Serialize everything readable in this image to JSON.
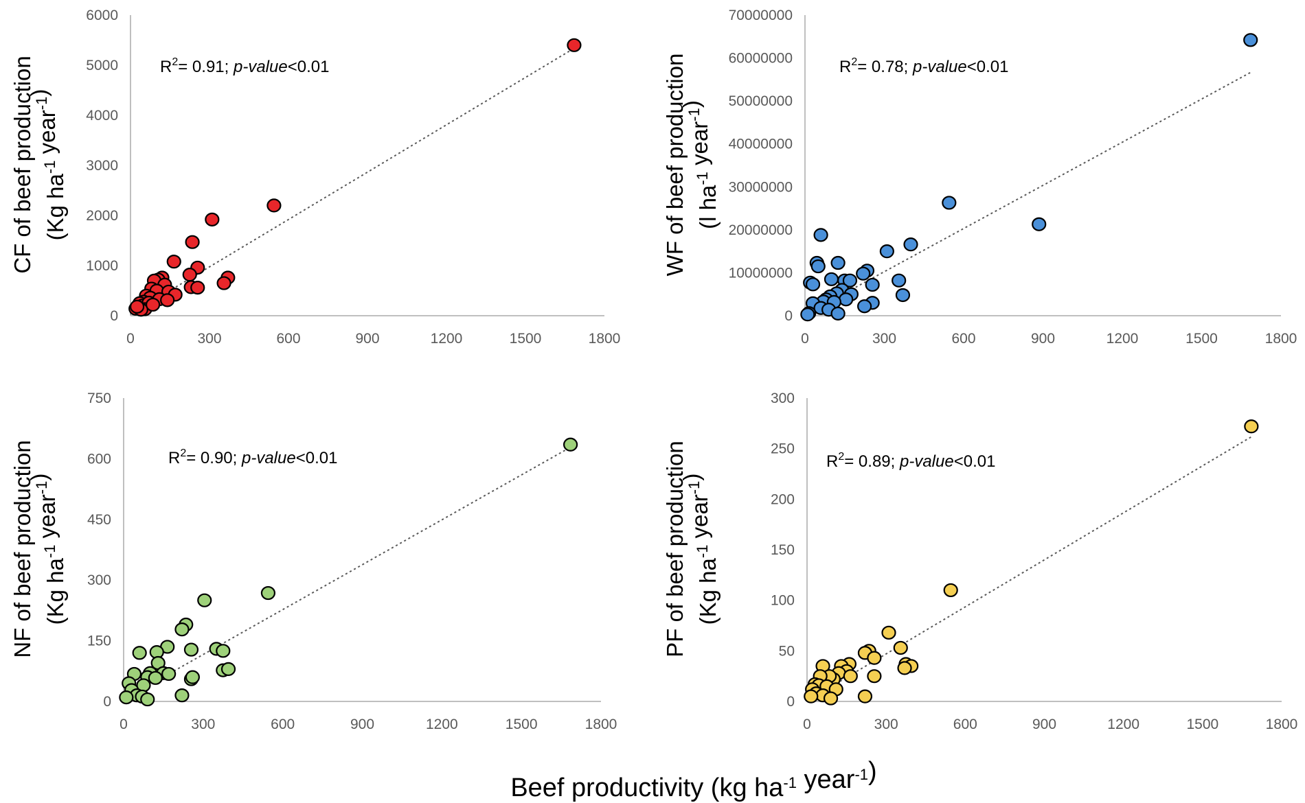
{
  "figure": {
    "shared_xlabel": "Beef productivity (kg ha-1 year-1)"
  },
  "chart_data": [
    {
      "type": "scatter",
      "id": "cf",
      "title": "",
      "ylabel_line1": "CF of beef production",
      "ylabel_line2": "(Kg ha-1 year-1)",
      "xlabel": "Beef productivity (kg ha-1 year-1)",
      "xlim": [
        0,
        1800
      ],
      "ylim": [
        0,
        6000
      ],
      "xticks": [
        0,
        300,
        600,
        900,
        1200,
        1500,
        1800
      ],
      "yticks": [
        0,
        1000,
        2000,
        3000,
        4000,
        5000,
        6000
      ],
      "color": "#e8262a",
      "annotation": {
        "r2_value": "0.91",
        "p_text": "p-value",
        "p_value": "<0.01"
      },
      "trendline": {
        "slope": 3.15,
        "intercept": 30,
        "x_range": [
          0,
          1685
        ]
      },
      "series": [
        {
          "name": "CF",
          "points": [
            [
              1685,
              5400
            ],
            [
              545,
              2200
            ],
            [
              310,
              1920
            ],
            [
              235,
              1470
            ],
            [
              165,
              1080
            ],
            [
              255,
              960
            ],
            [
              225,
              820
            ],
            [
              370,
              760
            ],
            [
              355,
              650
            ],
            [
              230,
              570
            ],
            [
              255,
              560
            ],
            [
              120,
              760
            ],
            [
              105,
              720
            ],
            [
              90,
              700
            ],
            [
              130,
              620
            ],
            [
              80,
              540
            ],
            [
              100,
              500
            ],
            [
              145,
              480
            ],
            [
              170,
              420
            ],
            [
              60,
              400
            ],
            [
              75,
              360
            ],
            [
              110,
              330
            ],
            [
              140,
              310
            ],
            [
              50,
              280
            ],
            [
              35,
              250
            ],
            [
              45,
              200
            ],
            [
              70,
              260
            ],
            [
              30,
              160
            ],
            [
              20,
              140
            ],
            [
              55,
              130
            ],
            [
              40,
              120
            ],
            [
              25,
              180
            ],
            [
              85,
              220
            ]
          ]
        }
      ]
    },
    {
      "type": "scatter",
      "id": "wf",
      "title": "",
      "ylabel_line1": "WF of beef production",
      "ylabel_line2": "(l ha-1 year-1)",
      "xlabel": "Beef productivity (kg ha-1 year-1)",
      "xlim": [
        0,
        1800
      ],
      "ylim": [
        0,
        70000000
      ],
      "xticks": [
        0,
        300,
        600,
        900,
        1200,
        1500,
        1800
      ],
      "yticks": [
        0,
        10000000,
        20000000,
        30000000,
        40000000,
        50000000,
        60000000,
        70000000
      ],
      "color": "#4a90d9",
      "annotation": {
        "r2_value": "0.78",
        "p_text": "p-value",
        "p_value": "<0.01"
      },
      "trendline": {
        "slope": 33500,
        "intercept": 200000,
        "x_range": [
          0,
          1685
        ]
      },
      "series": [
        {
          "name": "WF",
          "points": [
            [
              1685,
              64200000
            ],
            [
              545,
              26300000
            ],
            [
              885,
              21300000
            ],
            [
              60,
              18800000
            ],
            [
              400,
              16600000
            ],
            [
              310,
              15000000
            ],
            [
              45,
              12300000
            ],
            [
              125,
              12300000
            ],
            [
              50,
              11500000
            ],
            [
              235,
              10500000
            ],
            [
              220,
              9800000
            ],
            [
              100,
              8500000
            ],
            [
              150,
              8200000
            ],
            [
              170,
              8200000
            ],
            [
              355,
              8200000
            ],
            [
              20,
              7700000
            ],
            [
              30,
              7300000
            ],
            [
              255,
              7200000
            ],
            [
              140,
              6000000
            ],
            [
              120,
              5200000
            ],
            [
              175,
              5000000
            ],
            [
              370,
              4800000
            ],
            [
              95,
              4500000
            ],
            [
              80,
              3800000
            ],
            [
              155,
              3800000
            ],
            [
              70,
              3300000
            ],
            [
              110,
              3200000
            ],
            [
              255,
              3000000
            ],
            [
              30,
              2900000
            ],
            [
              225,
              2200000
            ],
            [
              60,
              1800000
            ],
            [
              90,
              1400000
            ],
            [
              125,
              500000
            ],
            [
              15,
              600000
            ],
            [
              10,
              300000
            ]
          ]
        }
      ]
    },
    {
      "type": "scatter",
      "id": "nf",
      "title": "",
      "ylabel_line1": "NF of beef production",
      "ylabel_line2": "(Kg ha-1 year-1)",
      "xlabel": "Beef productivity (kg ha-1 year-1)",
      "xlim": [
        0,
        1800
      ],
      "ylim": [
        0,
        750
      ],
      "xticks": [
        0,
        300,
        600,
        900,
        1200,
        1500,
        1800
      ],
      "yticks": [
        0,
        150,
        300,
        450,
        600,
        750
      ],
      "color": "#9ed17a",
      "annotation": {
        "r2_value": "0.90",
        "p_text": "p-value",
        "p_value": "<0.01"
      },
      "trendline": {
        "slope": 0.37,
        "intercept": 5,
        "x_range": [
          0,
          1685
        ]
      },
      "series": [
        {
          "name": "NF",
          "points": [
            [
              1685,
              635
            ],
            [
              545,
              268
            ],
            [
              305,
              250
            ],
            [
              235,
              190
            ],
            [
              220,
              178
            ],
            [
              165,
              135
            ],
            [
              60,
              120
            ],
            [
              125,
              122
            ],
            [
              350,
              130
            ],
            [
              375,
              125
            ],
            [
              255,
              128
            ],
            [
              130,
              95
            ],
            [
              40,
              68
            ],
            [
              100,
              70
            ],
            [
              150,
              70
            ],
            [
              170,
              68
            ],
            [
              90,
              60
            ],
            [
              120,
              58
            ],
            [
              75,
              40
            ],
            [
              20,
              45
            ],
            [
              30,
              28
            ],
            [
              50,
              15
            ],
            [
              70,
              12
            ],
            [
              10,
              10
            ],
            [
              90,
              5
            ],
            [
              220,
              15
            ],
            [
              255,
              55
            ],
            [
              260,
              60
            ],
            [
              375,
              77
            ],
            [
              395,
              80
            ]
          ]
        }
      ]
    },
    {
      "type": "scatter",
      "id": "pf",
      "title": "",
      "ylabel_line1": "PF of beef production",
      "ylabel_line2": "(Kg ha-1 year-1)",
      "xlabel": "Beef productivity (kg ha-1 year-1)",
      "xlim": [
        0,
        1800
      ],
      "ylim": [
        0,
        300
      ],
      "xticks": [
        0,
        300,
        600,
        900,
        1200,
        1500,
        1800
      ],
      "yticks": [
        0,
        50,
        100,
        150,
        200,
        250,
        300
      ],
      "color": "#f5cf52",
      "annotation": {
        "r2_value": "0.89",
        "p_text": "p-value",
        "p_value": "<0.01"
      },
      "trendline": {
        "slope": 0.155,
        "intercept": 0.5,
        "x_range": [
          0,
          1685
        ]
      },
      "series": [
        {
          "name": "PF",
          "points": [
            [
              1685,
              272
            ],
            [
              545,
              110
            ],
            [
              310,
              68
            ],
            [
              355,
              53
            ],
            [
              235,
              50
            ],
            [
              220,
              48
            ],
            [
              255,
              43
            ],
            [
              375,
              37
            ],
            [
              395,
              35
            ],
            [
              370,
              33
            ],
            [
              160,
              37
            ],
            [
              130,
              35
            ],
            [
              60,
              35
            ],
            [
              150,
              30
            ],
            [
              120,
              28
            ],
            [
              100,
              22
            ],
            [
              85,
              25
            ],
            [
              165,
              25
            ],
            [
              50,
              25
            ],
            [
              255,
              25
            ],
            [
              30,
              17
            ],
            [
              45,
              16
            ],
            [
              75,
              15
            ],
            [
              20,
              12
            ],
            [
              110,
              12
            ],
            [
              35,
              8
            ],
            [
              60,
              6
            ],
            [
              15,
              5
            ],
            [
              90,
              3
            ],
            [
              220,
              5
            ]
          ]
        }
      ]
    }
  ]
}
